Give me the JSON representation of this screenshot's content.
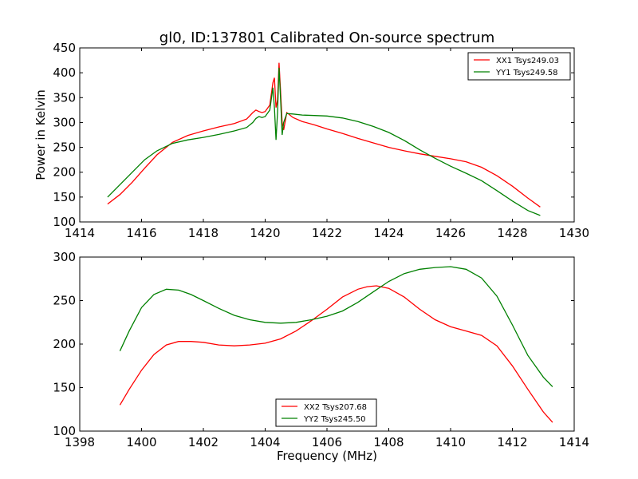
{
  "figure": {
    "title": "gl0, ID:137801 Calibrated On-source spectrum"
  },
  "chart_data": [
    {
      "type": "line",
      "title": "gl0, ID:137801 Calibrated On-source spectrum",
      "xlabel": "",
      "ylabel": "Power in Kelvin",
      "xlim": [
        1414,
        1430
      ],
      "ylim": [
        100,
        450
      ],
      "xticks": [
        1414,
        1416,
        1418,
        1420,
        1422,
        1424,
        1426,
        1428,
        1430
      ],
      "yticks": [
        100,
        150,
        200,
        250,
        300,
        350,
        400,
        450
      ],
      "legend_position": "top-right",
      "grid": false,
      "series": [
        {
          "name": "XX1 Tsys249.03",
          "color": "#ff0000",
          "x": [
            1414.9,
            1415.3,
            1415.7,
            1416.1,
            1416.5,
            1417.0,
            1417.5,
            1418.0,
            1418.5,
            1419.0,
            1419.4,
            1419.6,
            1419.7,
            1419.8,
            1419.9,
            1420.0,
            1420.15,
            1420.25,
            1420.3,
            1420.35,
            1420.4,
            1420.45,
            1420.5,
            1420.55,
            1420.6,
            1420.7,
            1420.9,
            1421.2,
            1421.6,
            1422.0,
            1422.5,
            1423.0,
            1423.5,
            1424.0,
            1424.5,
            1425.0,
            1425.5,
            1426.0,
            1426.5,
            1427.0,
            1427.5,
            1428.0,
            1428.5,
            1428.9
          ],
          "y": [
            136,
            155,
            180,
            208,
            235,
            260,
            274,
            283,
            291,
            298,
            307,
            320,
            325,
            322,
            320,
            322,
            335,
            380,
            390,
            330,
            345,
            420,
            360,
            300,
            285,
            320,
            310,
            302,
            295,
            287,
            278,
            268,
            259,
            250,
            243,
            237,
            232,
            227,
            221,
            210,
            193,
            172,
            148,
            130
          ]
        },
        {
          "name": "YY1 Tsys249.58",
          "color": "#008000",
          "x": [
            1414.9,
            1415.3,
            1415.7,
            1416.1,
            1416.5,
            1417.0,
            1417.5,
            1418.0,
            1418.5,
            1419.0,
            1419.4,
            1419.6,
            1419.7,
            1419.8,
            1419.9,
            1420.0,
            1420.15,
            1420.25,
            1420.3,
            1420.35,
            1420.4,
            1420.45,
            1420.5,
            1420.55,
            1420.6,
            1420.7,
            1420.9,
            1421.2,
            1421.6,
            1422.0,
            1422.5,
            1423.0,
            1423.5,
            1424.0,
            1424.5,
            1425.0,
            1425.5,
            1426.0,
            1426.5,
            1427.0,
            1427.5,
            1428.0,
            1428.5,
            1428.9
          ],
          "y": [
            150,
            175,
            200,
            225,
            243,
            258,
            265,
            270,
            276,
            283,
            290,
            300,
            308,
            312,
            310,
            312,
            325,
            370,
            330,
            265,
            320,
            410,
            345,
            275,
            300,
            318,
            317,
            315,
            314,
            313,
            309,
            302,
            292,
            280,
            264,
            245,
            228,
            212,
            198,
            183,
            163,
            142,
            123,
            113
          ]
        }
      ]
    },
    {
      "type": "line",
      "title": "",
      "xlabel": "Frequency (MHz)",
      "ylabel": "",
      "xlim": [
        1398,
        1414
      ],
      "ylim": [
        100,
        300
      ],
      "xticks": [
        1398,
        1400,
        1402,
        1404,
        1406,
        1408,
        1410,
        1412,
        1414
      ],
      "yticks": [
        100,
        150,
        200,
        250,
        300
      ],
      "legend_position": "bottom-center",
      "grid": false,
      "series": [
        {
          "name": "XX2 Tsys207.68",
          "color": "#ff0000",
          "x": [
            1399.3,
            1399.6,
            1400.0,
            1400.4,
            1400.8,
            1401.2,
            1401.6,
            1402.0,
            1402.5,
            1403.0,
            1403.5,
            1404.0,
            1404.5,
            1405.0,
            1405.5,
            1406.0,
            1406.5,
            1407.0,
            1407.3,
            1407.6,
            1408.0,
            1408.5,
            1409.0,
            1409.5,
            1410.0,
            1410.5,
            1411.0,
            1411.5,
            1412.0,
            1412.5,
            1413.0,
            1413.3
          ],
          "y": [
            130,
            148,
            170,
            188,
            199,
            203,
            203,
            202,
            199,
            198,
            199,
            201,
            206,
            215,
            227,
            240,
            254,
            263,
            266,
            267,
            264,
            254,
            240,
            228,
            220,
            215,
            210,
            198,
            175,
            148,
            122,
            110
          ]
        },
        {
          "name": "YY2 Tsys245.50",
          "color": "#008000",
          "x": [
            1399.3,
            1399.6,
            1400.0,
            1400.4,
            1400.8,
            1401.2,
            1401.6,
            1402.0,
            1402.5,
            1403.0,
            1403.5,
            1404.0,
            1404.5,
            1405.0,
            1405.5,
            1406.0,
            1406.5,
            1407.0,
            1407.5,
            1408.0,
            1408.5,
            1409.0,
            1409.5,
            1410.0,
            1410.5,
            1411.0,
            1411.5,
            1412.0,
            1412.5,
            1413.0,
            1413.3
          ],
          "y": [
            192,
            215,
            242,
            257,
            263,
            262,
            257,
            250,
            241,
            233,
            228,
            225,
            224,
            225,
            228,
            232,
            238,
            248,
            260,
            272,
            281,
            286,
            288,
            289,
            286,
            276,
            255,
            222,
            187,
            162,
            151
          ]
        }
      ]
    }
  ]
}
